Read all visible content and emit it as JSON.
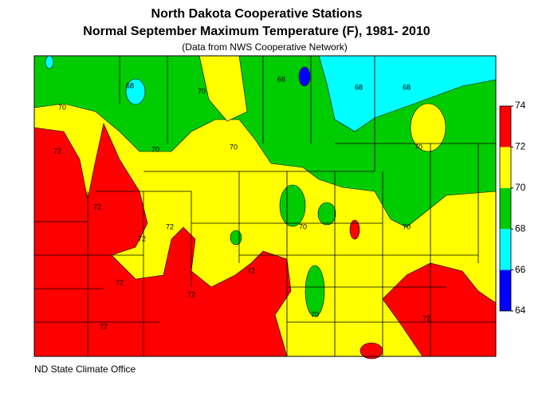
{
  "title": "North Dakota Cooperative Stations",
  "subtitle": "Normal September Maximum Temperature (F), 1981- 2010",
  "source_note": "(Data from NWS Cooperative Network)",
  "footer": "ND State Climate Office",
  "legend": {
    "ticks": [
      64,
      66,
      68,
      70,
      72,
      74
    ],
    "colors": [
      "#0000ff",
      "#00ffff",
      "#00cc00",
      "#ffff00",
      "#ff0000"
    ]
  },
  "contour_labels": [
    "68",
    "68",
    "68",
    "68",
    "70",
    "70",
    "70",
    "70",
    "70",
    "70",
    "70",
    "70",
    "72",
    "72",
    "72",
    "72",
    "72",
    "72",
    "72",
    "72",
    "72"
  ]
}
